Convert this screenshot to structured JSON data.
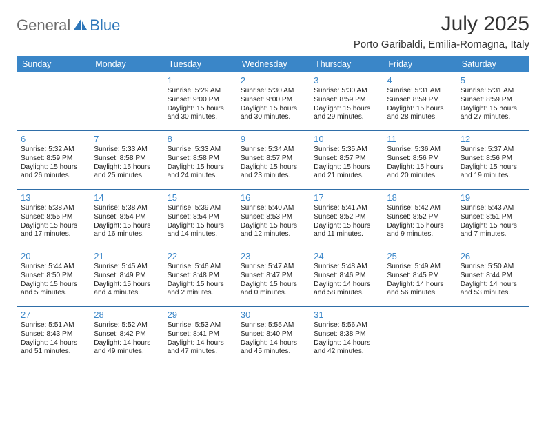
{
  "brand": {
    "part1": "General",
    "part2": "Blue"
  },
  "title": "July 2025",
  "location": "Porto Garibaldi, Emilia-Romagna, Italy",
  "colors": {
    "header_bg": "#3a86c8",
    "header_text": "#ffffff",
    "date_number": "#3a86c8",
    "week_border": "#2f6ea8",
    "brand_grey": "#6b6b6b",
    "brand_blue": "#2d76b9",
    "body_text": "#222222",
    "background": "#ffffff"
  },
  "day_names": [
    "Sunday",
    "Monday",
    "Tuesday",
    "Wednesday",
    "Thursday",
    "Friday",
    "Saturday"
  ],
  "weeks": [
    [
      null,
      null,
      {
        "n": "1",
        "sunrise": "Sunrise: 5:29 AM",
        "sunset": "Sunset: 9:00 PM",
        "day1": "Daylight: 15 hours",
        "day2": "and 30 minutes."
      },
      {
        "n": "2",
        "sunrise": "Sunrise: 5:30 AM",
        "sunset": "Sunset: 9:00 PM",
        "day1": "Daylight: 15 hours",
        "day2": "and 30 minutes."
      },
      {
        "n": "3",
        "sunrise": "Sunrise: 5:30 AM",
        "sunset": "Sunset: 8:59 PM",
        "day1": "Daylight: 15 hours",
        "day2": "and 29 minutes."
      },
      {
        "n": "4",
        "sunrise": "Sunrise: 5:31 AM",
        "sunset": "Sunset: 8:59 PM",
        "day1": "Daylight: 15 hours",
        "day2": "and 28 minutes."
      },
      {
        "n": "5",
        "sunrise": "Sunrise: 5:31 AM",
        "sunset": "Sunset: 8:59 PM",
        "day1": "Daylight: 15 hours",
        "day2": "and 27 minutes."
      }
    ],
    [
      {
        "n": "6",
        "sunrise": "Sunrise: 5:32 AM",
        "sunset": "Sunset: 8:59 PM",
        "day1": "Daylight: 15 hours",
        "day2": "and 26 minutes."
      },
      {
        "n": "7",
        "sunrise": "Sunrise: 5:33 AM",
        "sunset": "Sunset: 8:58 PM",
        "day1": "Daylight: 15 hours",
        "day2": "and 25 minutes."
      },
      {
        "n": "8",
        "sunrise": "Sunrise: 5:33 AM",
        "sunset": "Sunset: 8:58 PM",
        "day1": "Daylight: 15 hours",
        "day2": "and 24 minutes."
      },
      {
        "n": "9",
        "sunrise": "Sunrise: 5:34 AM",
        "sunset": "Sunset: 8:57 PM",
        "day1": "Daylight: 15 hours",
        "day2": "and 23 minutes."
      },
      {
        "n": "10",
        "sunrise": "Sunrise: 5:35 AM",
        "sunset": "Sunset: 8:57 PM",
        "day1": "Daylight: 15 hours",
        "day2": "and 21 minutes."
      },
      {
        "n": "11",
        "sunrise": "Sunrise: 5:36 AM",
        "sunset": "Sunset: 8:56 PM",
        "day1": "Daylight: 15 hours",
        "day2": "and 20 minutes."
      },
      {
        "n": "12",
        "sunrise": "Sunrise: 5:37 AM",
        "sunset": "Sunset: 8:56 PM",
        "day1": "Daylight: 15 hours",
        "day2": "and 19 minutes."
      }
    ],
    [
      {
        "n": "13",
        "sunrise": "Sunrise: 5:38 AM",
        "sunset": "Sunset: 8:55 PM",
        "day1": "Daylight: 15 hours",
        "day2": "and 17 minutes."
      },
      {
        "n": "14",
        "sunrise": "Sunrise: 5:38 AM",
        "sunset": "Sunset: 8:54 PM",
        "day1": "Daylight: 15 hours",
        "day2": "and 16 minutes."
      },
      {
        "n": "15",
        "sunrise": "Sunrise: 5:39 AM",
        "sunset": "Sunset: 8:54 PM",
        "day1": "Daylight: 15 hours",
        "day2": "and 14 minutes."
      },
      {
        "n": "16",
        "sunrise": "Sunrise: 5:40 AM",
        "sunset": "Sunset: 8:53 PM",
        "day1": "Daylight: 15 hours",
        "day2": "and 12 minutes."
      },
      {
        "n": "17",
        "sunrise": "Sunrise: 5:41 AM",
        "sunset": "Sunset: 8:52 PM",
        "day1": "Daylight: 15 hours",
        "day2": "and 11 minutes."
      },
      {
        "n": "18",
        "sunrise": "Sunrise: 5:42 AM",
        "sunset": "Sunset: 8:52 PM",
        "day1": "Daylight: 15 hours",
        "day2": "and 9 minutes."
      },
      {
        "n": "19",
        "sunrise": "Sunrise: 5:43 AM",
        "sunset": "Sunset: 8:51 PM",
        "day1": "Daylight: 15 hours",
        "day2": "and 7 minutes."
      }
    ],
    [
      {
        "n": "20",
        "sunrise": "Sunrise: 5:44 AM",
        "sunset": "Sunset: 8:50 PM",
        "day1": "Daylight: 15 hours",
        "day2": "and 5 minutes."
      },
      {
        "n": "21",
        "sunrise": "Sunrise: 5:45 AM",
        "sunset": "Sunset: 8:49 PM",
        "day1": "Daylight: 15 hours",
        "day2": "and 4 minutes."
      },
      {
        "n": "22",
        "sunrise": "Sunrise: 5:46 AM",
        "sunset": "Sunset: 8:48 PM",
        "day1": "Daylight: 15 hours",
        "day2": "and 2 minutes."
      },
      {
        "n": "23",
        "sunrise": "Sunrise: 5:47 AM",
        "sunset": "Sunset: 8:47 PM",
        "day1": "Daylight: 15 hours",
        "day2": "and 0 minutes."
      },
      {
        "n": "24",
        "sunrise": "Sunrise: 5:48 AM",
        "sunset": "Sunset: 8:46 PM",
        "day1": "Daylight: 14 hours",
        "day2": "and 58 minutes."
      },
      {
        "n": "25",
        "sunrise": "Sunrise: 5:49 AM",
        "sunset": "Sunset: 8:45 PM",
        "day1": "Daylight: 14 hours",
        "day2": "and 56 minutes."
      },
      {
        "n": "26",
        "sunrise": "Sunrise: 5:50 AM",
        "sunset": "Sunset: 8:44 PM",
        "day1": "Daylight: 14 hours",
        "day2": "and 53 minutes."
      }
    ],
    [
      {
        "n": "27",
        "sunrise": "Sunrise: 5:51 AM",
        "sunset": "Sunset: 8:43 PM",
        "day1": "Daylight: 14 hours",
        "day2": "and 51 minutes."
      },
      {
        "n": "28",
        "sunrise": "Sunrise: 5:52 AM",
        "sunset": "Sunset: 8:42 PM",
        "day1": "Daylight: 14 hours",
        "day2": "and 49 minutes."
      },
      {
        "n": "29",
        "sunrise": "Sunrise: 5:53 AM",
        "sunset": "Sunset: 8:41 PM",
        "day1": "Daylight: 14 hours",
        "day2": "and 47 minutes."
      },
      {
        "n": "30",
        "sunrise": "Sunrise: 5:55 AM",
        "sunset": "Sunset: 8:40 PM",
        "day1": "Daylight: 14 hours",
        "day2": "and 45 minutes."
      },
      {
        "n": "31",
        "sunrise": "Sunrise: 5:56 AM",
        "sunset": "Sunset: 8:38 PM",
        "day1": "Daylight: 14 hours",
        "day2": "and 42 minutes."
      },
      null,
      null
    ]
  ]
}
